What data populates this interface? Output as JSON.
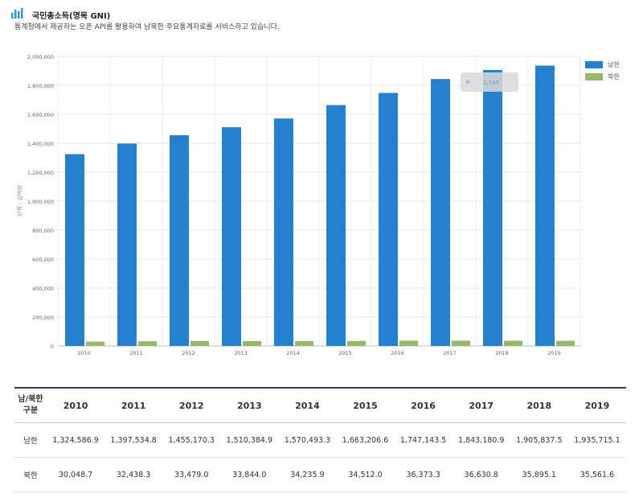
{
  "header": {
    "title": "국민총소득(명목 GNI)",
    "subtitle": "통계청에서 제공하는 오픈 API를 활용하여 남북한 주요통계자료를 서비스하고 있습니다."
  },
  "colors": {
    "south": "#2481cf",
    "north": "#97b866",
    "icon": "#2f9bd6"
  },
  "chart_data": {
    "type": "bar",
    "categories": [
      "2010",
      "2011",
      "2012",
      "2013",
      "2014",
      "2015",
      "2016",
      "2017",
      "2018",
      "2019"
    ],
    "series": [
      {
        "name": "남한",
        "values": [
          1324586.9,
          1397534.8,
          1455170.3,
          1510384.9,
          1570493.3,
          1663206.6,
          1747143.5,
          1843180.9,
          1905837.5,
          1935715.1
        ]
      },
      {
        "name": "북한",
        "values": [
          30048.7,
          32438.3,
          33479.0,
          33844.0,
          34235.9,
          34512.0,
          36373.3,
          36630.8,
          35895.1,
          35561.6
        ]
      }
    ],
    "ylabel": "단위 : 십억원",
    "ylim": [
      0,
      2000000
    ],
    "yticks": [
      "0",
      "200,000",
      "400,000",
      "600,000",
      "800,000",
      "1,000,000",
      "1,200,000",
      "1,400,000",
      "1,600,000",
      "1,800,000",
      "2,000,000"
    ],
    "tooltip": "1,740",
    "grid": true,
    "legend_position": "top-right"
  },
  "table": {
    "corner_label_1": "남/북한",
    "corner_label_2": "구분",
    "years": [
      "2010",
      "2011",
      "2012",
      "2013",
      "2014",
      "2015",
      "2016",
      "2017",
      "2018",
      "2019"
    ],
    "rows": [
      {
        "label": "남한",
        "values": [
          "1,324,586.9",
          "1,397,534.8",
          "1,455,170.3",
          "1,510,384.9",
          "1,570,493.3",
          "1,663,206.6",
          "1,747,143.5",
          "1,843,180.9",
          "1,905,837.5",
          "1,935,715.1"
        ]
      },
      {
        "label": "북한",
        "values": [
          "30,048.7",
          "32,438.3",
          "33,479.0",
          "33,844.0",
          "34,235.9",
          "34,512.0",
          "36,373.3",
          "36,630.8",
          "35,895.1",
          "35,561.6"
        ]
      }
    ]
  }
}
